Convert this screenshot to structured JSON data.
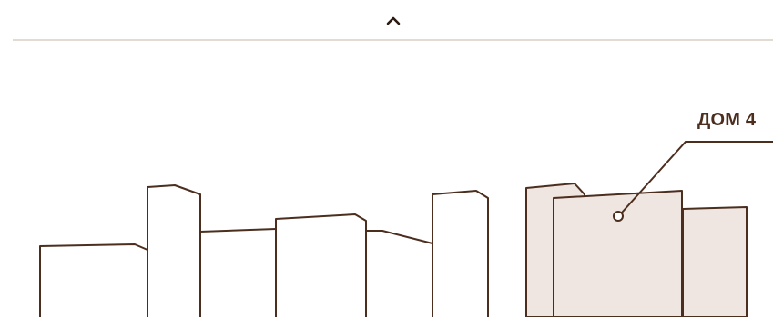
{
  "header": {
    "collapse_icon": "chevron-up-icon"
  },
  "map": {
    "house_label": "ДОМ 4",
    "colors": {
      "stroke": "#4b2e1e",
      "highlight_fill": "#efe5e1",
      "divider": "#e2dbd2"
    }
  }
}
